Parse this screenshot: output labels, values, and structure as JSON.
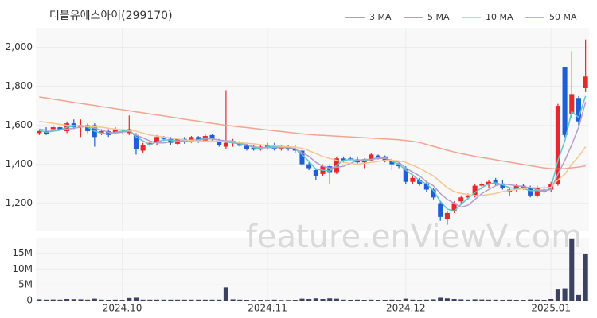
{
  "chart_data": {
    "type": "candlestick",
    "title": "더블유에스아이(299170)",
    "watermark": "feature.enViewV.com",
    "categories": [
      null,
      null,
      null,
      null,
      null,
      null,
      null,
      null,
      null,
      null,
      null,
      null,
      "2024.10",
      null,
      null,
      null,
      null,
      null,
      null,
      null,
      null,
      null,
      null,
      null,
      null,
      null,
      null,
      null,
      null,
      null,
      null,
      null,
      null,
      "2024.11",
      null,
      null,
      null,
      null,
      null,
      null,
      null,
      null,
      null,
      null,
      null,
      null,
      null,
      null,
      null,
      null,
      null,
      null,
      null,
      "2024.12",
      null,
      null,
      null,
      null,
      null,
      null,
      null,
      null,
      null,
      null,
      null,
      null,
      null,
      null,
      null,
      null,
      null,
      null,
      null,
      null,
      "2025.01",
      null,
      null,
      null,
      null,
      null
    ],
    "open": [
      1560,
      1570,
      1580,
      1590,
      1570,
      1610,
      1590,
      1600,
      1600,
      1560,
      1570,
      1560,
      1570,
      1560,
      1550,
      1470,
      1500,
      1510,
      1540,
      1530,
      1505,
      1530,
      1515,
      1540,
      1520,
      1550,
      1520,
      1490,
      1510,
      1510,
      1495,
      1485,
      1475,
      1490,
      1500,
      1480,
      1490,
      1480,
      1470,
      1400,
      1370,
      1350,
      1390,
      1360,
      1430,
      1430,
      1425,
      1410,
      1420,
      1445,
      1440,
      1420,
      1400,
      1380,
      1310,
      1320,
      1300,
      1270,
      1200,
      1120,
      1160,
      1210,
      1230,
      1240,
      1290,
      1300,
      1320,
      1300,
      1270,
      1270,
      1290,
      1280,
      1240,
      1270,
      1270,
      1300,
      1900,
      1660,
      1740,
      1790
    ],
    "high": [
      1580,
      1590,
      1600,
      1600,
      1620,
      1630,
      1630,
      1610,
      1610,
      1580,
      1580,
      1590,
      1580,
      1650,
      1560,
      1510,
      1520,
      1550,
      1545,
      1540,
      1535,
      1540,
      1545,
      1545,
      1555,
      1555,
      1530,
      1780,
      1530,
      1520,
      1510,
      1500,
      1500,
      1510,
      1510,
      1500,
      1500,
      1500,
      1480,
      1410,
      1380,
      1400,
      1400,
      1440,
      1440,
      1440,
      1440,
      1430,
      1455,
      1450,
      1445,
      1430,
      1410,
      1390,
      1340,
      1330,
      1310,
      1280,
      1210,
      1160,
      1210,
      1240,
      1250,
      1300,
      1310,
      1320,
      1330,
      1320,
      1280,
      1300,
      1300,
      1290,
      1290,
      1290,
      1310,
      1710,
      1900,
      1980,
      1750,
      2040
    ],
    "low": [
      1550,
      1550,
      1570,
      1570,
      1560,
      1580,
      1540,
      1560,
      1490,
      1550,
      1540,
      1555,
      1560,
      1550,
      1450,
      1460,
      1490,
      1500,
      1520,
      1500,
      1500,
      1505,
      1510,
      1510,
      1515,
      1520,
      1490,
      1480,
      1490,
      1490,
      1470,
      1470,
      1470,
      1475,
      1470,
      1470,
      1470,
      1460,
      1390,
      1370,
      1320,
      1340,
      1300,
      1350,
      1410,
      1420,
      1400,
      1380,
      1415,
      1425,
      1410,
      1370,
      1380,
      1300,
      1300,
      1290,
      1260,
      1220,
      1110,
      1090,
      1150,
      1200,
      1220,
      1230,
      1270,
      1280,
      1290,
      1270,
      1240,
      1260,
      1270,
      1230,
      1230,
      1250,
      1260,
      1290,
      1540,
      1640,
      1600,
      1770
    ],
    "close": [
      1570,
      1555,
      1590,
      1575,
      1610,
      1590,
      1600,
      1570,
      1540,
      1570,
      1550,
      1580,
      1565,
      1580,
      1480,
      1500,
      1510,
      1540,
      1530,
      1510,
      1530,
      1515,
      1540,
      1520,
      1545,
      1530,
      1500,
      1510,
      1520,
      1495,
      1480,
      1475,
      1490,
      1500,
      1480,
      1495,
      1480,
      1470,
      1400,
      1380,
      1340,
      1390,
      1360,
      1430,
      1420,
      1425,
      1410,
      1420,
      1450,
      1430,
      1420,
      1400,
      1390,
      1310,
      1330,
      1300,
      1270,
      1230,
      1130,
      1150,
      1200,
      1230,
      1240,
      1290,
      1300,
      1310,
      1300,
      1280,
      1260,
      1290,
      1280,
      1240,
      1280,
      1260,
      1300,
      1700,
      1550,
      1760,
      1620,
      1850
    ],
    "up_color": "#e8262b",
    "down_color": "#1f5fd6",
    "ylim": [
      1060,
      2100
    ],
    "yticks": [
      {
        "value": 1200,
        "label": "1,200"
      },
      {
        "value": 1400,
        "label": "1,400"
      },
      {
        "value": 1600,
        "label": "1,600"
      },
      {
        "value": 1800,
        "label": "1,800"
      },
      {
        "value": 2000,
        "label": "2,000"
      }
    ],
    "grid": true,
    "legend": "top-right",
    "series": [
      {
        "name": "3 MA",
        "color": "#5cc6cc",
        "values": [
          1575,
          1565,
          1570,
          1575,
          1590,
          1595,
          1600,
          1590,
          1570,
          1560,
          1555,
          1565,
          1570,
          1575,
          1540,
          1520,
          1500,
          1515,
          1525,
          1525,
          1520,
          1520,
          1525,
          1525,
          1535,
          1530,
          1525,
          1515,
          1510,
          1505,
          1500,
          1485,
          1480,
          1490,
          1490,
          1490,
          1485,
          1480,
          1450,
          1415,
          1375,
          1370,
          1365,
          1395,
          1420,
          1425,
          1420,
          1420,
          1425,
          1435,
          1435,
          1415,
          1400,
          1370,
          1345,
          1315,
          1300,
          1265,
          1210,
          1170,
          1160,
          1195,
          1225,
          1255,
          1280,
          1300,
          1305,
          1295,
          1280,
          1275,
          1275,
          1265,
          1265,
          1260,
          1280,
          1420,
          1520,
          1670,
          1640,
          1750
        ]
      },
      {
        "name": "5 MA",
        "color": "#b39dcc",
        "values": [
          1580,
          1575,
          1575,
          1578,
          1580,
          1585,
          1590,
          1595,
          1585,
          1575,
          1565,
          1560,
          1565,
          1570,
          1550,
          1535,
          1520,
          1510,
          1510,
          1515,
          1520,
          1520,
          1520,
          1525,
          1530,
          1530,
          1525,
          1520,
          1520,
          1510,
          1500,
          1490,
          1485,
          1485,
          1485,
          1485,
          1485,
          1480,
          1460,
          1440,
          1410,
          1390,
          1380,
          1385,
          1390,
          1405,
          1420,
          1425,
          1425,
          1430,
          1430,
          1420,
          1410,
          1380,
          1360,
          1340,
          1310,
          1290,
          1250,
          1220,
          1200,
          1180,
          1190,
          1220,
          1250,
          1270,
          1290,
          1300,
          1295,
          1290,
          1285,
          1280,
          1270,
          1265,
          1270,
          1350,
          1420,
          1500,
          1590,
          1720
        ]
      },
      {
        "name": "10 MA",
        "color": "#f3c790",
        "values": [
          1620,
          1615,
          1610,
          1605,
          1600,
          1598,
          1596,
          1594,
          1592,
          1590,
          1585,
          1580,
          1578,
          1575,
          1570,
          1560,
          1550,
          1545,
          1540,
          1535,
          1530,
          1525,
          1522,
          1520,
          1520,
          1520,
          1518,
          1516,
          1515,
          1512,
          1508,
          1505,
          1500,
          1498,
          1495,
          1492,
          1490,
          1488,
          1482,
          1470,
          1455,
          1440,
          1430,
          1420,
          1410,
          1405,
          1400,
          1405,
          1410,
          1415,
          1420,
          1420,
          1418,
          1410,
          1395,
          1380,
          1360,
          1340,
          1310,
          1280,
          1260,
          1250,
          1245,
          1240,
          1240,
          1245,
          1250,
          1260,
          1265,
          1270,
          1275,
          1280,
          1280,
          1280,
          1282,
          1320,
          1350,
          1400,
          1440,
          1490
        ]
      },
      {
        "name": "50 MA",
        "color": "#f2a48e",
        "values": [
          1745,
          1740,
          1734,
          1729,
          1723,
          1718,
          1712,
          1707,
          1702,
          1696,
          1691,
          1685,
          1680,
          1675,
          1669,
          1664,
          1658,
          1653,
          1648,
          1642,
          1637,
          1631,
          1626,
          1621,
          1615,
          1610,
          1605,
          1600,
          1596,
          1592,
          1588,
          1584,
          1580,
          1576,
          1572,
          1568,
          1564,
          1560,
          1556,
          1553,
          1550,
          1548,
          1546,
          1544,
          1542,
          1540,
          1538,
          1536,
          1534,
          1532,
          1530,
          1528,
          1526,
          1522,
          1518,
          1512,
          1502,
          1492,
          1482,
          1472,
          1463,
          1455,
          1448,
          1441,
          1435,
          1429,
          1423,
          1417,
          1411,
          1405,
          1399,
          1393,
          1387,
          1381,
          1378,
          1376,
          1378,
          1382,
          1386,
          1392
        ]
      }
    ],
    "volume": {
      "color": "#3c4160",
      "ylim": [
        0,
        19700000
      ],
      "yticks": [
        0,
        {
          "value": 5000000,
          "label": "5M"
        },
        {
          "value": 10000000,
          "label": "10M"
        },
        {
          "value": 15000000,
          "label": "15M"
        }
      ],
      "values": [
        400000,
        300000,
        350000,
        300000,
        500000,
        450000,
        400000,
        300000,
        600000,
        300000,
        250000,
        300000,
        250000,
        800000,
        900000,
        300000,
        300000,
        300000,
        300000,
        300000,
        300000,
        300000,
        300000,
        300000,
        300000,
        300000,
        300000,
        4200000,
        400000,
        300000,
        250000,
        200000,
        250000,
        200000,
        300000,
        200000,
        200000,
        250000,
        600000,
        500000,
        700000,
        500000,
        700000,
        600000,
        300000,
        250000,
        300000,
        250000,
        300000,
        250000,
        250000,
        300000,
        250000,
        600000,
        300000,
        250000,
        300000,
        400000,
        900000,
        700000,
        500000,
        400000,
        300000,
        400000,
        350000,
        300000,
        300000,
        250000,
        300000,
        250000,
        250000,
        350000,
        300000,
        250000,
        500000,
        3500000,
        3900000,
        19500000,
        1800000,
        14700000
      ]
    }
  }
}
